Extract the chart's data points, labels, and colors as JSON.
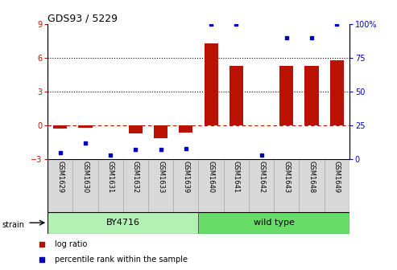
{
  "title": "GDS93 / 5229",
  "samples": [
    "GSM1629",
    "GSM1630",
    "GSM1631",
    "GSM1632",
    "GSM1633",
    "GSM1639",
    "GSM1640",
    "GSM1641",
    "GSM1642",
    "GSM1643",
    "GSM1648",
    "GSM1649"
  ],
  "log_ratio": [
    -0.3,
    -0.2,
    0.0,
    -0.7,
    -1.1,
    -0.6,
    7.3,
    5.3,
    0.0,
    5.3,
    5.3,
    5.8
  ],
  "percentile_rank": [
    5,
    12,
    3,
    7,
    7,
    8,
    100,
    100,
    3,
    90,
    90,
    100
  ],
  "strain_groups": [
    {
      "label": "BY4716",
      "start": 0,
      "end": 6,
      "color": "#b3f0b3"
    },
    {
      "label": "wild type",
      "start": 6,
      "end": 12,
      "color": "#66dd66"
    }
  ],
  "bar_color": "#bb1100",
  "dot_color": "#0000bb",
  "ylim_left": [
    -3,
    9
  ],
  "ylim_right": [
    0,
    100
  ],
  "yticks_left": [
    -3,
    0,
    3,
    6,
    9
  ],
  "yticks_right": [
    0,
    25,
    50,
    75,
    100
  ],
  "right_tick_labels": [
    "0",
    "25",
    "50",
    "75",
    "100%"
  ],
  "dotted_lines": [
    3,
    6
  ],
  "bar_width": 0.55
}
